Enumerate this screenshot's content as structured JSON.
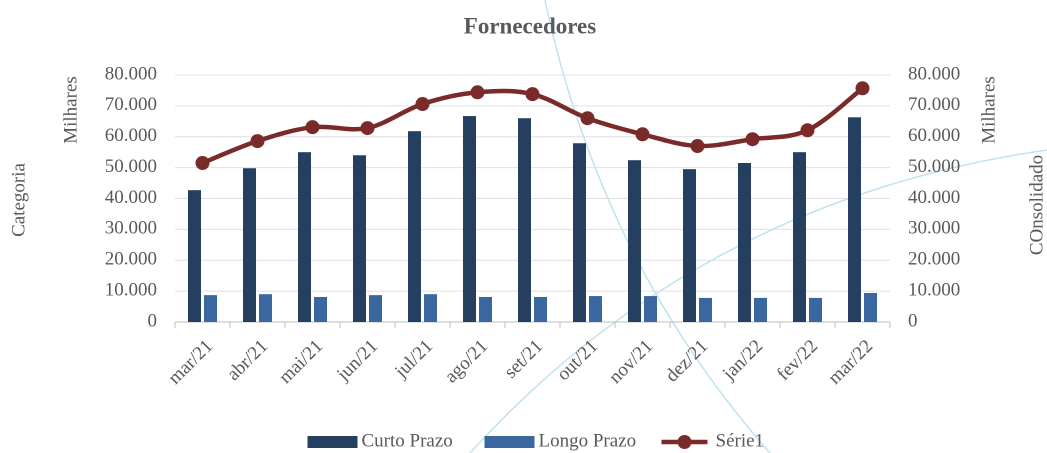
{
  "chart_data": {
    "type": "bar",
    "title": "Fornecedores",
    "y_label": "Milhares",
    "y2_label": "Milhares",
    "left_label": "Categoria",
    "right_label": "COnsolidado",
    "categories": [
      "mar/21",
      "abr/21",
      "mai/21",
      "jun/21",
      "jul/21",
      "ago/21",
      "set/21",
      "out/21",
      "nov/21",
      "dez/21",
      "jan/22",
      "fev/22",
      "mar/22"
    ],
    "series": [
      {
        "name": "Curto Prazo",
        "color": "#243f60",
        "values": [
          42700,
          49800,
          55000,
          54000,
          61800,
          66700,
          66000,
          57900,
          52400,
          49500,
          51500,
          55000,
          66300
        ]
      },
      {
        "name": "Longo Prazo",
        "color": "#3a67a0",
        "values": [
          8700,
          9000,
          8100,
          8700,
          9000,
          8100,
          8100,
          8400,
          8400,
          7800,
          7800,
          7800,
          9400
        ]
      },
      {
        "name": "Série1",
        "color": "#7b2a2a",
        "type": "line",
        "axis": "y2",
        "values": [
          51500,
          58600,
          63100,
          62800,
          70600,
          74400,
          73800,
          66000,
          60800,
          57000,
          59200,
          62100,
          75700
        ]
      }
    ],
    "ylim": [
      0,
      80000
    ],
    "yticks": [
      0,
      {
        "value": 10000,
        "label": "10.000"
      },
      {
        "value": 20000,
        "label": "20.000"
      },
      {
        "value": 30000,
        "label": "30.000"
      },
      {
        "value": 40000,
        "label": "40.000"
      },
      {
        "value": 50000,
        "label": "50.000"
      },
      {
        "value": 60000,
        "label": "60.000"
      },
      {
        "value": 70000,
        "label": "70.000"
      },
      {
        "value": 80000,
        "label": "80.000"
      }
    ],
    "y2lim": [
      0,
      80000
    ],
    "y2ticks": [
      0,
      {
        "value": 10000,
        "label": "10.000"
      },
      {
        "value": 20000,
        "label": "20.000"
      },
      {
        "value": 30000,
        "label": "30.000"
      },
      {
        "value": 40000,
        "label": "40.000"
      },
      {
        "value": 50000,
        "label": "50.000"
      },
      {
        "value": 60000,
        "label": "60.000"
      },
      {
        "value": 70000,
        "label": "70.000"
      },
      {
        "value": 80000,
        "label": "80.000"
      }
    ],
    "grid": true,
    "legend": "bottom"
  }
}
